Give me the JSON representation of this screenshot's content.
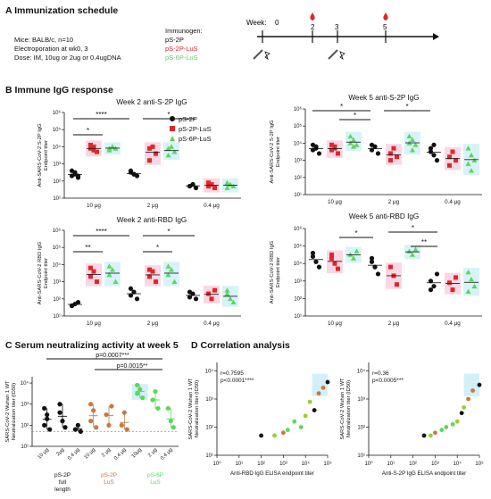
{
  "panelA": {
    "letter": "A",
    "title": "Immunization schedule",
    "lines": [
      "Mice: BALB/c, n=10",
      "Electroporation at wk0, 3",
      "Dose: IM, 10ug or 2ug or 0.4ugDNA"
    ],
    "immunogen_label": "Immunogen:",
    "immunogens": [
      {
        "name": "pS-2P",
        "color": "#111111"
      },
      {
        "name": "pS-2P-LuS",
        "color": "#e0262a"
      },
      {
        "name": "pS-6P-LuS",
        "color": "#5cd65c"
      }
    ],
    "week_label": "Week:",
    "weeks": [
      "0",
      "2",
      "3",
      "5"
    ]
  },
  "panelB": {
    "letter": "B",
    "title": "Immune IgG response",
    "legend": [
      "pS-2P",
      "pS-2P-LuS",
      "pS-6P-LuS"
    ],
    "charts": [
      {
        "title": "Week 2 anti-S-2P IgG",
        "ylabel": "Anti-SARS-CoV-2 S-2P IgG\nEndpoint titer",
        "yticks": [
          "10⁶",
          "10⁵",
          "10⁴",
          "10³",
          "10²",
          "10¹"
        ],
        "categories": [
          "10 μg",
          "2 μg",
          "0.4 μg"
        ],
        "sig": [
          "****",
          "*",
          "*"
        ]
      },
      {
        "title": "Week 5 anti-S-2P IgG",
        "ylabel": "Anti-SARS-CoV-2 S-2P IgG\nEndpoint titer",
        "yticks": [
          "10⁶",
          "10⁵",
          "10⁴",
          "10³",
          "10²",
          "10¹"
        ],
        "categories": [
          "10 μg",
          "2 μg",
          "0.4 μg"
        ],
        "sig": [
          "*",
          "*",
          "*"
        ]
      },
      {
        "title": "Week 2 anti-RBD IgG",
        "ylabel": "Anti-SARS-CoV-2 RBD IgG\nEndpoint titer",
        "yticks": [
          "10⁶",
          "10⁵",
          "10⁴",
          "10³",
          "10²",
          "10¹"
        ],
        "categories": [
          "10 μg",
          "2 μg",
          "0.4 μg"
        ],
        "sig": [
          "****",
          "**",
          "*",
          "*"
        ]
      },
      {
        "title": "Week 5 anti-RBD IgG",
        "ylabel": "Anti-SARS-CoV-2 RBD IgG\nEndpoint titer",
        "yticks": [
          "10⁶",
          "10⁵",
          "10⁴",
          "10³",
          "10²",
          "10¹"
        ],
        "categories": [
          "10 μg",
          "2 μg",
          "0.4 μg"
        ],
        "sig": [
          "*",
          "*",
          "**"
        ]
      }
    ]
  },
  "panelC": {
    "letter": "C",
    "title": "Serum neutralizing activity at week 5",
    "ylabel": "SARS-CoV-2 Wuhan 1 WT\nNeutralization titer (ID50)",
    "yticks": [
      "10⁴",
      "10³",
      "10²",
      "10¹"
    ],
    "p1": "p=0.0007***",
    "p2": "p=0.0015**",
    "xcats": [
      "10 μg",
      "2μg",
      "0.4 μg",
      "10 μg",
      "2 μg",
      "0.4 μg",
      "10μg",
      "2 μg",
      "0.4 μg"
    ],
    "groups": [
      {
        "name": "pS-2P\nfull\nlength",
        "color": "#111111"
      },
      {
        "name": "pS-2P\nLuS",
        "color": "#c27a45"
      },
      {
        "name": "pS-6P\nLuS",
        "color": "#5cd65c"
      }
    ]
  },
  "panelD": {
    "letter": "D",
    "title": "Correlation analysis",
    "plots": [
      {
        "r": "r=0.7595",
        "p": "p<0.0001****",
        "ylabel": "SARS-CoV-2 Wuhan 1 WT\nNeutralization titer (ID50)",
        "xlabel": "Anti-RBD IgG ELISA endpoint titer",
        "xticks": [
          "10⁰",
          "10¹",
          "10²",
          "10³",
          "10⁴",
          "10⁵"
        ],
        "yticks": [
          "10⁴",
          "10³",
          "10²",
          "10¹"
        ]
      },
      {
        "r": "r=0.36",
        "p": "p<0.0005***",
        "ylabel": "SARS-CoV-2 Wuhan 1 WT\nNeutralization titer (ID50)",
        "xlabel": "Anti-S-2P IgG ELISA endpoint titer",
        "xticks": [
          "10⁰",
          "10¹",
          "10²",
          "10³",
          "10⁴",
          "10⁵"
        ],
        "yticks": [
          "10⁴",
          "10³",
          "10²",
          "10¹"
        ]
      }
    ]
  },
  "chart_data": [
    {
      "type": "scatter",
      "title": "Week 2 anti-S-2P IgG",
      "series": [
        {
          "name": "pS-2P",
          "values": [
            [
              2.3,
              2.5,
              2.2,
              2.6,
              2.4,
              2.3
            ],
            [
              2.5,
              2.4,
              2.3,
              2.6,
              2.4
            ],
            [
              1.7,
              1.8,
              1.6,
              1.7,
              1.8
            ]
          ]
        },
        {
          "name": "pS-2P-LuS",
          "values": [
            [
              3.9,
              4.0,
              3.7,
              4.1,
              3.8
            ],
            [
              3.9,
              4.0,
              3.6,
              3.2
            ],
            [
              1.7,
              1.8,
              1.6,
              1.9
            ]
          ]
        },
        {
          "name": "pS-6P-LuS",
          "values": [
            [
              3.9,
              4.0,
              3.9,
              3.8,
              4.0
            ],
            [
              3.9,
              4.0,
              3.7,
              3.5
            ],
            [
              1.6,
              1.8,
              1.7,
              1.9
            ]
          ]
        }
      ]
    },
    {
      "type": "scatter",
      "title": "Week 5 anti-S-2P IgG",
      "series": [
        {
          "name": "pS-2P",
          "values": [
            [
              3.6,
              3.8,
              3.4,
              3.9,
              3.7
            ],
            [
              3.6,
              3.8,
              3.4,
              3.9
            ],
            [
              3.7,
              3.3,
              3.0,
              3.5,
              3.9
            ]
          ]
        },
        {
          "name": "pS-2P-LuS",
          "values": [
            [
              3.6,
              3.8,
              3.4,
              3.9,
              3.7
            ],
            [
              3.4,
              3.7,
              3.2,
              3.0
            ],
            [
              3.2,
              3.5,
              3.0,
              2.7
            ]
          ]
        },
        {
          "name": "pS-6P-LuS",
          "values": [
            [
              4.0,
              4.2,
              3.9,
              4.4,
              3.8
            ],
            [
              4.0,
              4.2,
              3.9,
              4.4,
              3.6
            ],
            [
              3.7,
              3.3,
              3.0,
              2.8,
              2.4
            ]
          ]
        }
      ]
    },
    {
      "type": "scatter",
      "title": "Week 2 anti-RBD IgG",
      "series": [
        {
          "name": "pS-2P",
          "values": [
            [
              1.6,
              1.7,
              1.8,
              1.6
            ],
            [
              2.2,
              2.4,
              2.0,
              2.6
            ],
            [
              2.1,
              2.3,
              2.0,
              2.4
            ]
          ]
        },
        {
          "name": "pS-2P-LuS",
          "values": [
            [
              3.3,
              3.6,
              3.0,
              3.8
            ],
            [
              3.3,
              3.6,
              3.0,
              3.7
            ],
            [
              2.3,
              2.0,
              2.5
            ]
          ]
        },
        {
          "name": "pS-6P-LuS",
          "values": [
            [
              3.4,
              3.7,
              3.0,
              3.9
            ],
            [
              3.4,
              3.7,
              3.0,
              3.9
            ],
            [
              2.3,
              2.0,
              1.8,
              2.5
            ]
          ]
        }
      ]
    },
    {
      "type": "scatter",
      "title": "Week 5 anti-RBD IgG",
      "series": [
        {
          "name": "pS-2P",
          "values": [
            [
              4.4,
              4.1,
              3.8,
              4.6
            ],
            [
              4.1,
              3.8,
              3.4,
              4.3
            ],
            [
              3.0,
              2.7,
              3.4,
              2.5
            ]
          ]
        },
        {
          "name": "pS-2P-LuS",
          "values": [
            [
              4.3,
              4.0,
              3.7,
              4.5
            ],
            [
              3.8,
              3.3,
              2.8
            ],
            [
              2.9,
              2.5,
              3.2
            ]
          ]
        },
        {
          "name": "pS-6P-LuS",
          "values": [
            [
              4.5,
              4.3,
              4.7
            ],
            [
              4.7,
              4.5,
              4.8
            ],
            [
              3.5,
              3.1,
              2.7,
              2.4
            ]
          ]
        }
      ]
    },
    {
      "type": "scatter",
      "title": "Serum neutralizing activity at week 5",
      "series": [
        {
          "name": "pS-2P full length",
          "values": [
            [
              2.0,
              2.5,
              1.8,
              2.8,
              2.3
            ],
            [
              2.6,
              2.2,
              1.9,
              3.0
            ],
            [
              1.8,
              2.0,
              1.7
            ]
          ]
        },
        {
          "name": "pS-2P LuS",
          "values": [
            [
              2.2,
              2.7,
              1.9,
              3.0
            ],
            [
              2.5,
              2.0,
              2.9
            ],
            [
              2.0,
              2.6,
              1.8
            ]
          ]
        },
        {
          "name": "pS-6P LuS",
          "values": [
            [
              3.5,
              3.7,
              3.3,
              3.9
            ],
            [
              3.2,
              3.6,
              2.8
            ],
            [
              2.8,
              2.2,
              1.9
            ]
          ]
        }
      ]
    },
    {
      "type": "scatter",
      "title": "Correlation analysis (Anti-RBD)",
      "series": [
        {
          "name": "points",
          "x": [
            2.0,
            3.0,
            3.5,
            4.0,
            4.4,
            4.6,
            3.8,
            4.2,
            5.0,
            4.8,
            3.2,
            2.6
          ],
          "y": [
            1.7,
            1.8,
            2.2,
            2.4,
            2.6,
            3.2,
            2.0,
            2.9,
            3.6,
            3.4,
            1.9,
            1.7
          ]
        }
      ]
    },
    {
      "type": "scatter",
      "title": "Correlation analysis (Anti-S-2P)",
      "series": [
        {
          "name": "points",
          "x": [
            2.5,
            3.0,
            3.5,
            4.0,
            4.2,
            4.5,
            3.8,
            4.3,
            5.0,
            4.7,
            3.3,
            2.8
          ],
          "y": [
            1.7,
            1.8,
            2.0,
            2.2,
            2.5,
            3.0,
            2.1,
            2.7,
            3.5,
            3.3,
            1.9,
            1.7
          ]
        }
      ]
    }
  ]
}
